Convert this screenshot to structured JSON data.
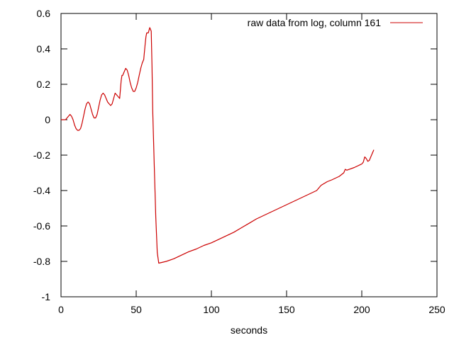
{
  "chart_data": {
    "type": "line",
    "xlabel": "seconds",
    "ylabel": "",
    "xlim": [
      0,
      250
    ],
    "ylim": [
      -1,
      0.6
    ],
    "xticks": [
      0,
      50,
      100,
      150,
      200,
      250
    ],
    "yticks": [
      -1,
      -0.8,
      -0.6,
      -0.4,
      -0.2,
      0,
      0.2,
      0.4,
      0.6
    ],
    "xtick_labels": [
      "0",
      "50",
      "100",
      "150",
      "200",
      "250"
    ],
    "ytick_labels": [
      "-1",
      "-0.8",
      "-0.6",
      "-0.4",
      "-0.2",
      "0",
      "0.2",
      "0.4",
      "0.6"
    ],
    "grid": false,
    "legend_position": "top-right",
    "series": [
      {
        "name": "raw data from log, column 161",
        "color": "#cc0000",
        "x": [
          0,
          3,
          4,
          5,
          6,
          7,
          8,
          9,
          10,
          11,
          12,
          13,
          14,
          15,
          16,
          17,
          18,
          19,
          20,
          21,
          22,
          23,
          24,
          25,
          26,
          27,
          28,
          29,
          30,
          31,
          32,
          33,
          34,
          35,
          36,
          37,
          38,
          39,
          40,
          40.5,
          41,
          42,
          43,
          44,
          45,
          46,
          47,
          48,
          49,
          50,
          51,
          52,
          53,
          54,
          55,
          56,
          56.5,
          57,
          58,
          59,
          60,
          60.5,
          61,
          62,
          63,
          64,
          65,
          70,
          75,
          80,
          85,
          90,
          95,
          100,
          105,
          110,
          115,
          120,
          125,
          130,
          135,
          140,
          145,
          150,
          155,
          160,
          165,
          170,
          172,
          173,
          174,
          175,
          176,
          177,
          180,
          185,
          188,
          189,
          190,
          195,
          200,
          201,
          202,
          203,
          204,
          205,
          206,
          207,
          208
        ],
        "y": [
          0,
          0,
          0.01,
          0.02,
          0.03,
          0.02,
          0.0,
          -0.03,
          -0.05,
          -0.06,
          -0.06,
          -0.05,
          -0.02,
          0.02,
          0.06,
          0.09,
          0.1,
          0.09,
          0.06,
          0.03,
          0.01,
          0.01,
          0.03,
          0.07,
          0.11,
          0.14,
          0.15,
          0.14,
          0.12,
          0.1,
          0.09,
          0.08,
          0.09,
          0.12,
          0.15,
          0.14,
          0.13,
          0.12,
          0.22,
          0.25,
          0.25,
          0.27,
          0.29,
          0.28,
          0.25,
          0.21,
          0.18,
          0.16,
          0.16,
          0.18,
          0.21,
          0.25,
          0.29,
          0.32,
          0.34,
          0.43,
          0.47,
          0.49,
          0.49,
          0.52,
          0.5,
          0.3,
          0.05,
          -0.25,
          -0.55,
          -0.75,
          -0.81,
          -0.8,
          -0.785,
          -0.765,
          -0.745,
          -0.73,
          -0.71,
          -0.695,
          -0.675,
          -0.655,
          -0.635,
          -0.61,
          -0.585,
          -0.56,
          -0.54,
          -0.52,
          -0.5,
          -0.48,
          -0.46,
          -0.44,
          -0.42,
          -0.4,
          -0.38,
          -0.37,
          -0.365,
          -0.36,
          -0.355,
          -0.35,
          -0.34,
          -0.32,
          -0.3,
          -0.28,
          -0.285,
          -0.27,
          -0.25,
          -0.24,
          -0.21,
          -0.22,
          -0.235,
          -0.23,
          -0.21,
          -0.19,
          -0.17
        ]
      }
    ]
  }
}
